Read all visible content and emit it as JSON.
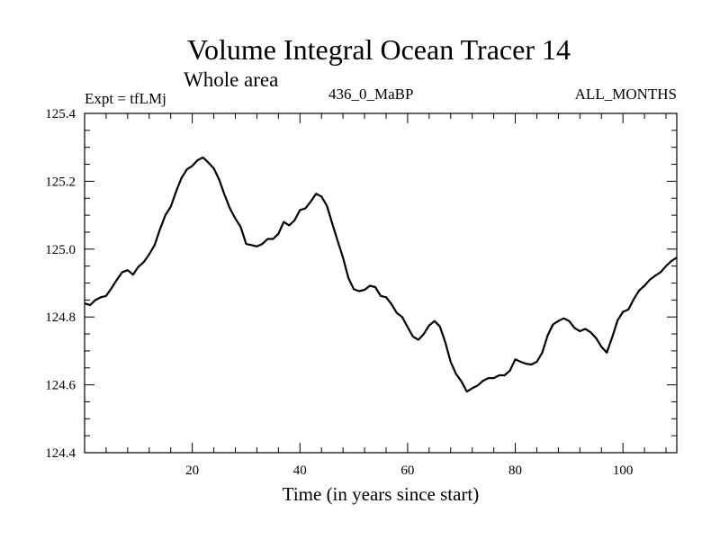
{
  "chart_data": {
    "type": "line",
    "title": "Volume Integral Ocean Tracer 14",
    "subtitle": "Whole area",
    "left_label": "Expt = tfLMj",
    "center_label": "436_0_MaBP",
    "right_label": "ALL_MONTHS",
    "xlabel": "Time (in years since start)",
    "ylabel": "",
    "xlim": [
      0,
      110
    ],
    "ylim": [
      124.4,
      125.4
    ],
    "x_ticks": [
      20,
      40,
      60,
      80,
      100
    ],
    "x_tick_labels": [
      "20",
      "40",
      "60",
      "80",
      "100"
    ],
    "y_ticks": [
      124.4,
      124.6,
      124.8,
      125.0,
      125.2,
      125.4
    ],
    "y_tick_labels": [
      "124.4",
      "124.6",
      "124.8",
      "125.0",
      "125.2",
      "125.4"
    ],
    "grid": false,
    "series": [
      {
        "name": "Volume Integral Ocean Tracer 14",
        "color": "#000000",
        "x": [
          0,
          1,
          2,
          3,
          4,
          5,
          6,
          7,
          8,
          9,
          10,
          11,
          12,
          13,
          14,
          15,
          16,
          17,
          18,
          19,
          20,
          21,
          22,
          23,
          24,
          25,
          26,
          27,
          28,
          29,
          30,
          31,
          32,
          33,
          34,
          35,
          36,
          37,
          38,
          39,
          40,
          41,
          42,
          43,
          44,
          45,
          46,
          47,
          48,
          49,
          50,
          51,
          52,
          53,
          54,
          55,
          56,
          57,
          58,
          59,
          60,
          61,
          62,
          63,
          64,
          65,
          66,
          67,
          68,
          69,
          70,
          71,
          72,
          73,
          74,
          75,
          76,
          77,
          78,
          79,
          80,
          81,
          82,
          83,
          84,
          85,
          86,
          87,
          88,
          89,
          90,
          91,
          92,
          93,
          94,
          95,
          96,
          97,
          98,
          99,
          100,
          101,
          102,
          103,
          104,
          105,
          106,
          107,
          108,
          109,
          110
        ],
        "y": [
          124.84,
          124.835,
          124.85,
          124.858,
          124.862,
          124.885,
          124.91,
          124.932,
          124.938,
          124.925,
          124.948,
          124.962,
          124.985,
          125.012,
          125.058,
          125.1,
          125.125,
          125.17,
          125.21,
          125.235,
          125.245,
          125.262,
          125.27,
          125.255,
          125.238,
          125.205,
          125.16,
          125.12,
          125.09,
          125.065,
          125.015,
          125.012,
          125.008,
          125.015,
          125.03,
          125.03,
          125.045,
          125.08,
          125.07,
          125.085,
          125.115,
          125.12,
          125.14,
          125.163,
          125.155,
          125.128,
          125.075,
          125.025,
          124.975,
          124.915,
          124.882,
          124.876,
          124.88,
          124.892,
          124.888,
          124.862,
          124.858,
          124.838,
          124.812,
          124.8,
          124.77,
          124.742,
          124.733,
          124.75,
          124.775,
          124.788,
          124.772,
          124.725,
          124.667,
          124.632,
          124.61,
          124.58,
          124.59,
          124.598,
          124.612,
          124.62,
          124.62,
          124.628,
          124.628,
          124.642,
          124.675,
          124.668,
          124.662,
          124.66,
          124.668,
          124.695,
          124.745,
          124.778,
          124.788,
          124.796,
          124.788,
          124.768,
          124.758,
          124.765,
          124.755,
          124.738,
          124.712,
          124.695,
          124.74,
          124.79,
          124.815,
          124.822,
          124.852,
          124.878,
          124.892,
          124.91,
          124.922,
          124.932,
          124.95,
          124.965,
          124.975
        ]
      }
    ]
  }
}
